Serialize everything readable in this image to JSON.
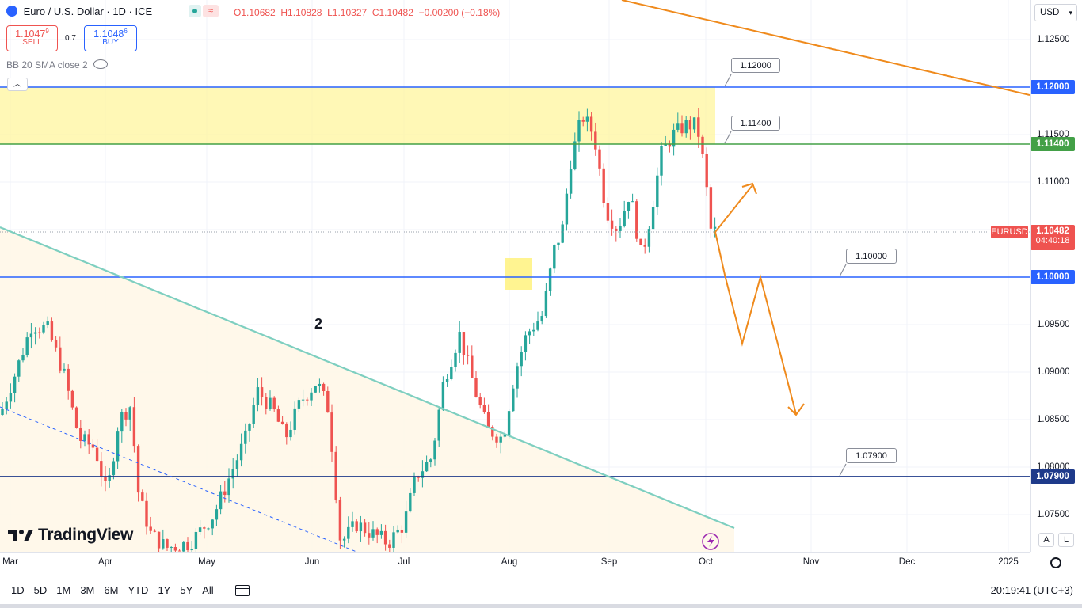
{
  "header": {
    "symbol_title": "Euro / U.S. Dollar · 1D · ICE",
    "open": "O1.10682",
    "high": "H1.10828",
    "low": "L1.10327",
    "close": "C1.10482",
    "change": "−0.00200 (−0.18%)",
    "sell_price_main": "1.1047",
    "sell_price_sup": "9",
    "sell_label": "SELL",
    "spread": "0.7",
    "buy_price_main": "1.1048",
    "buy_price_sup": "6",
    "buy_label": "BUY",
    "indicator": "BB 20 SMA close 2",
    "currency": "USD"
  },
  "price_ticks": [
    "1.12500",
    "1.12000",
    "1.11500",
    "1.11000",
    "1.10500",
    "1.10000",
    "1.09500",
    "1.09000",
    "1.08500",
    "1.08000",
    "1.07500"
  ],
  "time_ticks": [
    "Mar",
    "Apr",
    "May",
    "Jun",
    "Jul",
    "Aug",
    "Sep",
    "Oct",
    "Nov",
    "Dec",
    "2025"
  ],
  "level_labels": {
    "l1120": "1.12000",
    "l1114": "1.11400",
    "l1100": "1.10000",
    "l1079": "1.07900",
    "symbol": "EURUSD",
    "last": "1.10482",
    "countdown": "04:40:18"
  },
  "annotations": {
    "wave_label": "2",
    "scale_a": "A",
    "scale_l": "L"
  },
  "brand": "TradingView",
  "bottom": {
    "timeframes": [
      "1D",
      "5D",
      "1M",
      "3M",
      "6M",
      "YTD",
      "1Y",
      "5Y",
      "All"
    ],
    "clock": "20:19:41 (UTC+3)"
  },
  "colors": {
    "up": "#26a69a",
    "down": "#ef5350",
    "level": "#2962ff",
    "support_green": "#43a047",
    "support_navy": "#1e3a8a",
    "zone_yellow": "#fff59d",
    "trend_orange": "#ef8a1c",
    "trend_teal": "#7ecfc0"
  },
  "chart_data": {
    "type": "candlestick",
    "symbol": "EURUSD",
    "timeframe": "1D",
    "y_range": [
      1.072,
      1.1283
    ],
    "horizontal_levels": [
      1.12,
      1.114,
      1.1,
      1.079
    ],
    "resistance_zone": [
      1.114,
      1.12
    ],
    "last_price": 1.10482,
    "last_ohlc": {
      "open": 1.10682,
      "high": 1.10828,
      "low": 1.10327,
      "close": 1.10482
    },
    "projection_path": [
      1.1048,
      1.1003,
      1.1095,
      1.1034,
      1.0935,
      1.1001,
      1.0865
    ]
  }
}
